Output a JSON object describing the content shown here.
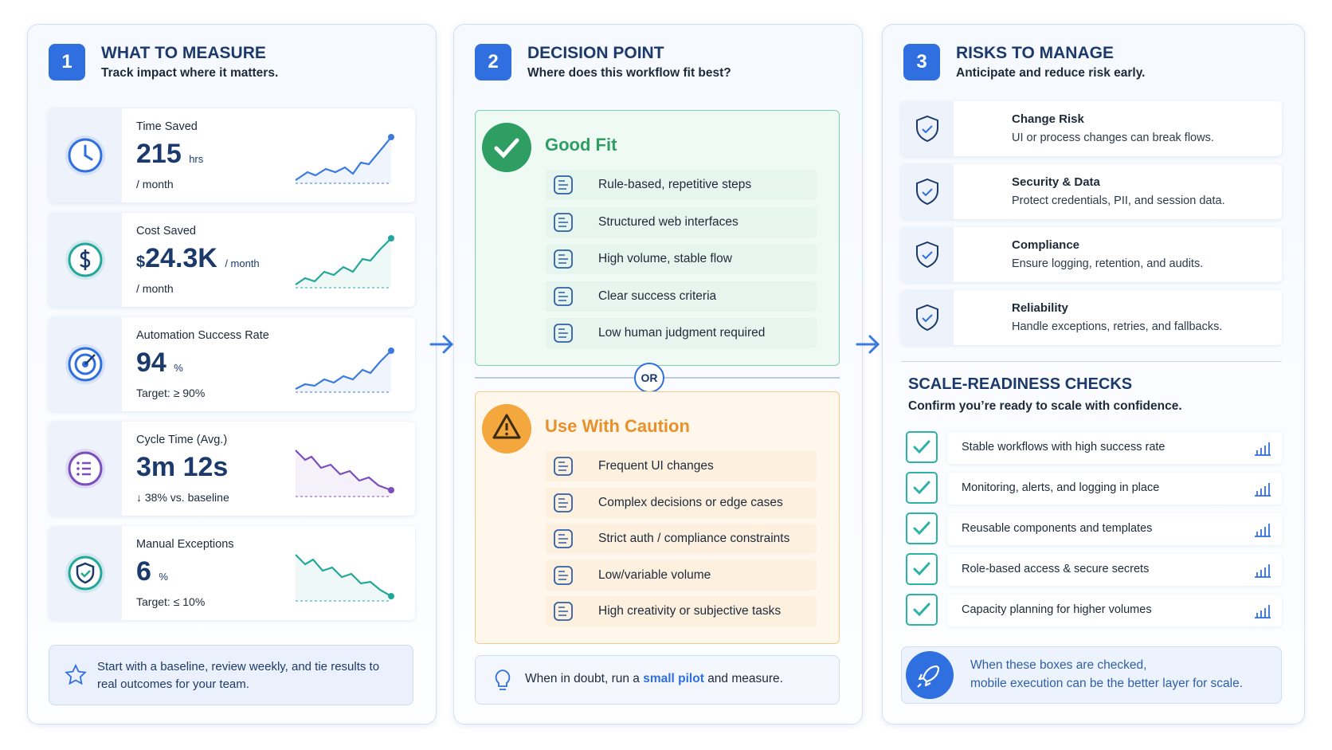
{
  "panel1": {
    "number": "1",
    "title": "WHAT TO MEASURE",
    "subtitle": "Track impact where it matters.",
    "metrics": [
      {
        "label": "Time Saved",
        "value": "215",
        "unit": "hrs",
        "note": "/ month"
      },
      {
        "label": "Cost Saved",
        "currency": "$",
        "value": "24.3K",
        "unit": "/ month",
        "note": "/ month"
      },
      {
        "label": "Automation Success Rate",
        "value": "94",
        "unit": "%",
        "note": "Target: ≥ 90%"
      },
      {
        "label": "Cycle Time (Avg.)",
        "value": "3m 12s",
        "note": "↓ 38% vs. baseline"
      },
      {
        "label": "Manual Exceptions",
        "value": "6",
        "unit": "%",
        "note": "Target: ≤ 10%"
      }
    ],
    "tip": "Start with a baseline, review weekly, and tie results to real outcomes for your team."
  },
  "panel2": {
    "number": "2",
    "title": "DECISION POINT",
    "subtitle": "Where does this workflow fit best?",
    "good": {
      "title": "Good Fit",
      "items": [
        "Rule-based, repetitive steps",
        "Structured web interfaces",
        "High volume, stable flow",
        "Clear success criteria",
        "Low human judgment required"
      ]
    },
    "or": "OR",
    "caution": {
      "title": "Use With Caution",
      "items": [
        "Frequent UI changes",
        "Complex decisions or edge cases",
        "Strict auth / compliance constraints",
        "Low/variable volume",
        "High creativity or subjective tasks"
      ]
    },
    "tip": {
      "before": "When in doubt, run a",
      "highlight": "small pilot",
      "after": "and measure."
    }
  },
  "panel3": {
    "number": "3",
    "title": "RISKS TO MANAGE",
    "subtitle": "Anticipate and reduce risk early.",
    "risks": [
      {
        "title": "Change Risk",
        "text": "UI or process changes can break flows."
      },
      {
        "title": "Security & Data",
        "text": "Protect credentials, PII, and session data."
      },
      {
        "title": "Compliance",
        "text": "Ensure logging, retention, and audits."
      },
      {
        "title": "Reliability",
        "text": "Handle exceptions, retries, and fallbacks."
      }
    ],
    "checks": {
      "title": "SCALE-READINESS CHECKS",
      "subtitle": "Confirm you’re ready to scale with confidence.",
      "items": [
        "Stable workflows with high success rate",
        "Monitoring, alerts, and logging in place",
        "Reusable components and templates",
        "Role-based access & secure secrets",
        "Capacity planning for higher volumes"
      ]
    },
    "footer": [
      "When these boxes are checked,",
      "mobile execution can be the better layer for scale."
    ]
  }
}
